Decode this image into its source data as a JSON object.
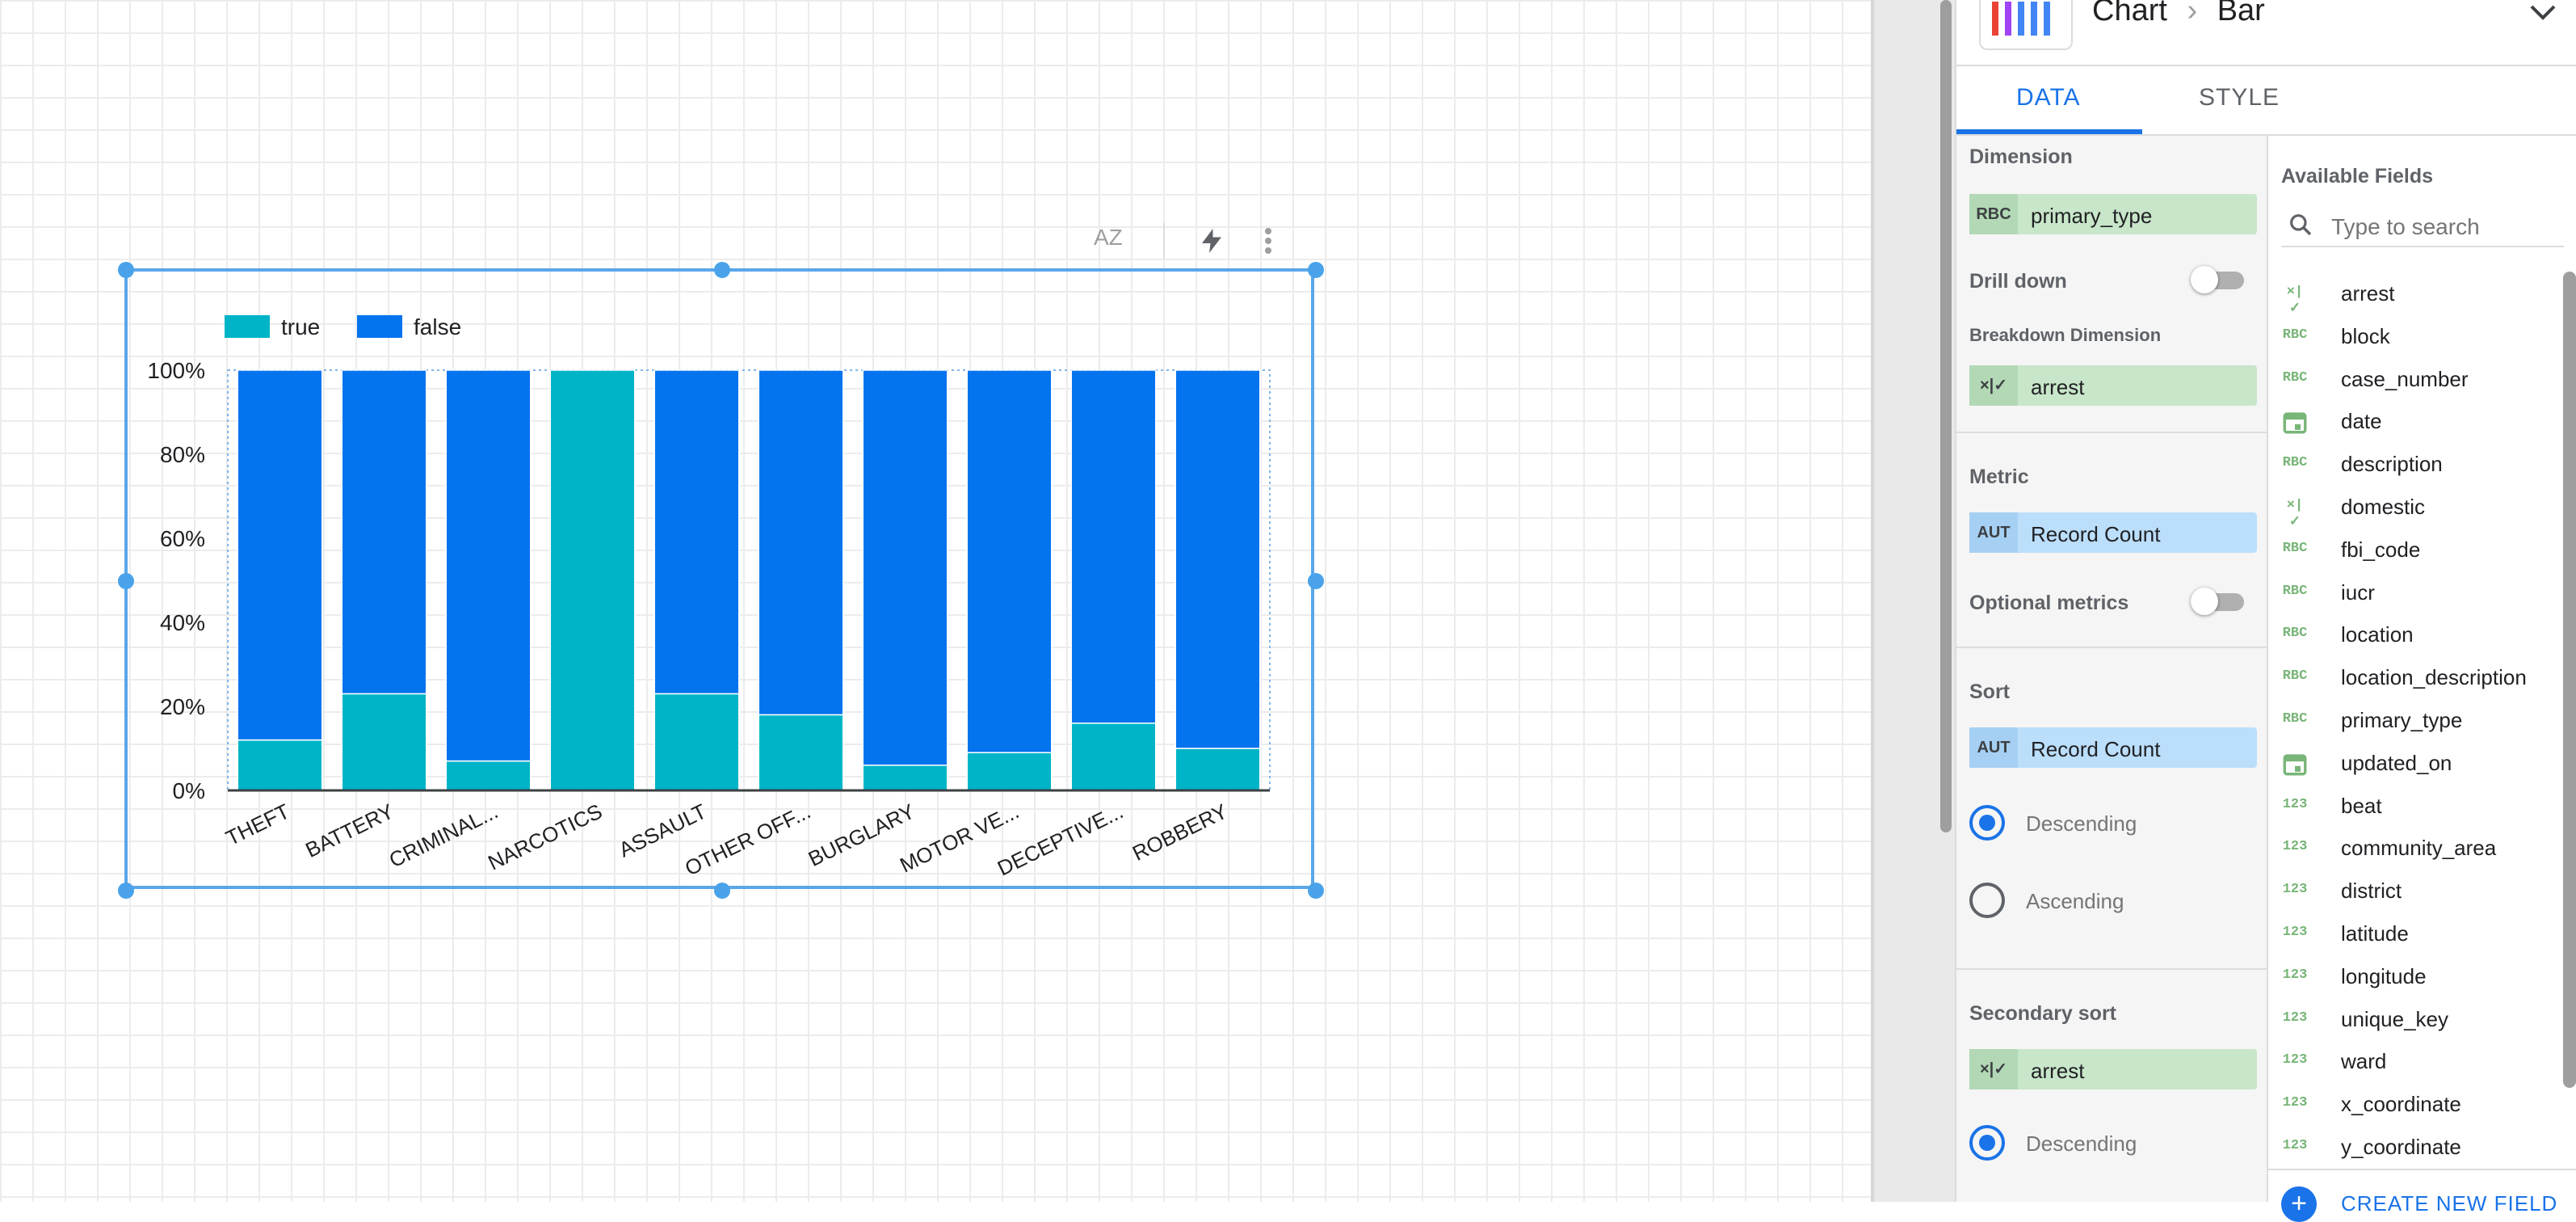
{
  "panel": {
    "chart_kind": "Chart",
    "chart_subtype": "Bar",
    "tabs": [
      "DATA",
      "STYLE"
    ],
    "active_tab": "DATA",
    "dimension": {
      "label": "Dimension",
      "type_badge": "RBC",
      "field": "primary_type"
    },
    "drill_down": {
      "label": "Drill down",
      "enabled": false
    },
    "breakdown": {
      "label": "Breakdown Dimension",
      "type_badge": "×|✓",
      "field": "arrest"
    },
    "metric": {
      "label": "Metric",
      "type_badge": "AUT",
      "field": "Record Count"
    },
    "optional_metrics": {
      "label": "Optional metrics",
      "enabled": false
    },
    "sort": {
      "label": "Sort",
      "type_badge": "AUT",
      "field": "Record Count",
      "descending": "Descending",
      "ascending": "Ascending",
      "selected": "Descending"
    },
    "secondary_sort": {
      "label": "Secondary sort",
      "type_badge": "×|✓",
      "field": "arrest",
      "descending": "Descending",
      "selected": "Descending"
    },
    "available_fields": {
      "title": "Available Fields",
      "search_placeholder": "Type to search",
      "items": [
        {
          "icon": "×|✓",
          "name": "arrest"
        },
        {
          "icon": "RBC",
          "name": "block"
        },
        {
          "icon": "RBC",
          "name": "case_number"
        },
        {
          "icon": "calendar-icon",
          "name": "date"
        },
        {
          "icon": "RBC",
          "name": "description"
        },
        {
          "icon": "×|✓",
          "name": "domestic"
        },
        {
          "icon": "RBC",
          "name": "fbi_code"
        },
        {
          "icon": "RBC",
          "name": "iucr"
        },
        {
          "icon": "RBC",
          "name": "location"
        },
        {
          "icon": "RBC",
          "name": "location_description"
        },
        {
          "icon": "RBC",
          "name": "primary_type"
        },
        {
          "icon": "calendar-icon",
          "name": "updated_on"
        },
        {
          "icon": "123",
          "name": "beat"
        },
        {
          "icon": "123",
          "name": "community_area"
        },
        {
          "icon": "123",
          "name": "district"
        },
        {
          "icon": "123",
          "name": "latitude"
        },
        {
          "icon": "123",
          "name": "longitude"
        },
        {
          "icon": "123",
          "name": "unique_key"
        },
        {
          "icon": "123",
          "name": "ward"
        },
        {
          "icon": "123",
          "name": "x_coordinate"
        },
        {
          "icon": "123",
          "name": "y_coordinate"
        }
      ],
      "create_label": "CREATE NEW FIELD"
    }
  },
  "toolbar": {
    "sort_icon": "AZ"
  },
  "chart_data": {
    "type": "bar",
    "stacked": "100%",
    "categories": [
      "THEFT",
      "BATTERY",
      "CRIMINAL...",
      "NARCOTICS",
      "ASSAULT",
      "OTHER OFF...",
      "BURGLARY",
      "MOTOR VE...",
      "DECEPTIVE...",
      "ROBBERY"
    ],
    "series": [
      {
        "name": "true",
        "color": "#00b4c8",
        "values": [
          12,
          23,
          7,
          100,
          23,
          18,
          6,
          9,
          16,
          10
        ]
      },
      {
        "name": "false",
        "color": "#0473ee",
        "values": [
          88,
          77,
          93,
          0,
          77,
          82,
          94,
          91,
          84,
          90
        ]
      }
    ],
    "ylim": [
      0,
      100
    ],
    "yticks": [
      "0%",
      "20%",
      "40%",
      "60%",
      "80%",
      "100%"
    ],
    "legend": "top-left",
    "grid": false
  }
}
